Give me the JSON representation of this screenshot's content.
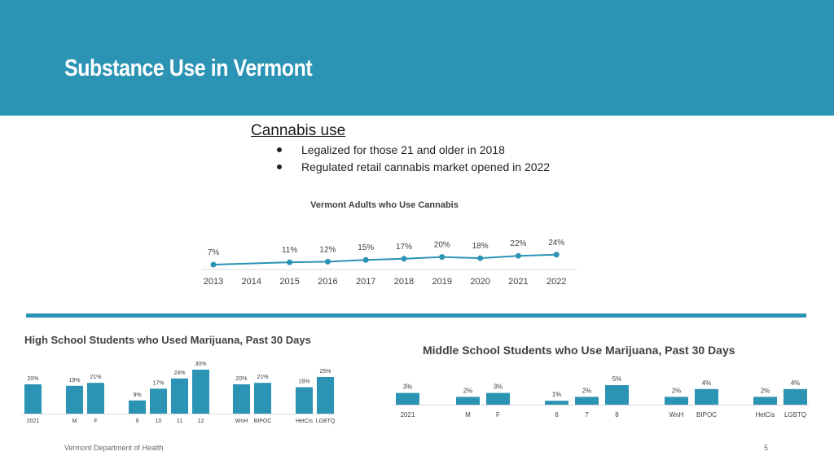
{
  "slide": {
    "title": "Substance Use in Vermont",
    "header_color": "#2b93b4",
    "bar_color": "#2b93b4"
  },
  "cannabis": {
    "heading": "Cannabis use",
    "bullets": [
      "Legalized for those 21 and older in 2018",
      "Regulated retail cannabis market opened in 2022"
    ]
  },
  "chart_data": [
    {
      "type": "line",
      "title": "Vermont Adults who Use Cannabis",
      "x": [
        "2013",
        "2014",
        "2015",
        "2016",
        "2017",
        "2018",
        "2019",
        "2020",
        "2021",
        "2022"
      ],
      "series": [
        {
          "values": [
            7,
            null,
            11,
            12,
            15,
            17,
            20,
            18,
            22,
            24
          ],
          "labels": [
            "7%",
            "",
            "11%",
            "12%",
            "15%",
            "17%",
            "20%",
            "18%",
            "22%",
            "24%"
          ]
        }
      ]
    },
    {
      "type": "bar",
      "title": "High School Students who Used Marijuana, Past 30 Days",
      "groups": [
        {
          "categories": [
            "2021"
          ],
          "values": [
            20
          ],
          "labels": [
            "20%"
          ]
        },
        {
          "categories": [
            "M",
            "F"
          ],
          "values": [
            19,
            21
          ],
          "labels": [
            "19%",
            "21%"
          ]
        },
        {
          "categories": [
            "9",
            "10",
            "11",
            "12"
          ],
          "values": [
            9,
            17,
            24,
            30
          ],
          "labels": [
            "9%",
            "17%",
            "24%",
            "30%"
          ]
        },
        {
          "categories": [
            "WnH",
            "BIPOC"
          ],
          "values": [
            20,
            21
          ],
          "labels": [
            "20%",
            "21%"
          ]
        },
        {
          "categories": [
            "HetCis",
            "LGBTQ"
          ],
          "values": [
            18,
            25
          ],
          "labels": [
            "18%",
            "25%"
          ]
        }
      ]
    },
    {
      "type": "bar",
      "title": "Middle School Students who Use Marijuana, Past 30 Days",
      "groups": [
        {
          "categories": [
            "2021"
          ],
          "values": [
            3
          ],
          "labels": [
            "3%"
          ]
        },
        {
          "categories": [
            "M",
            "F"
          ],
          "values": [
            2,
            3
          ],
          "labels": [
            "2%",
            "3%"
          ]
        },
        {
          "categories": [
            "6",
            "7",
            "8"
          ],
          "values": [
            1,
            2,
            5
          ],
          "labels": [
            "1%",
            "2%",
            "5%"
          ]
        },
        {
          "categories": [
            "WnH",
            "BIPOC"
          ],
          "values": [
            2,
            4
          ],
          "labels": [
            "2%",
            "4%"
          ]
        },
        {
          "categories": [
            "HetCis",
            "LGBTQ"
          ],
          "values": [
            2,
            4
          ],
          "labels": [
            "2%",
            "4%"
          ]
        }
      ]
    }
  ],
  "footer": {
    "source": "Vermont Department of Health",
    "page_number": "5"
  }
}
